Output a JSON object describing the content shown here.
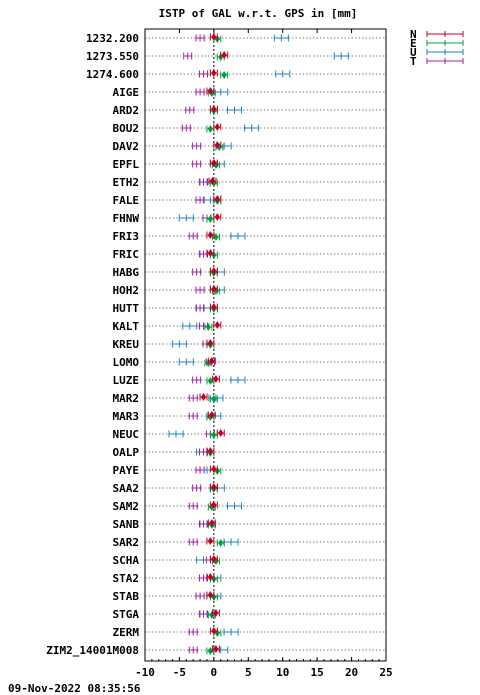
{
  "chart_data": {
    "type": "scatter",
    "title": "ISTP of GAL w.r.t. GPS in [mm]",
    "xlim": [
      -10,
      25
    ],
    "xticks": [
      -10,
      -5,
      0,
      5,
      10,
      15,
      20,
      25
    ],
    "grid": "horizontal dotted",
    "legend_position": "top-right",
    "colors": {
      "N": "#c00020",
      "E": "#00a040",
      "U": "#2080c0",
      "T": "#a020a0"
    },
    "series_names": [
      "N",
      "E",
      "U",
      "T"
    ],
    "stations": [
      {
        "name": "1232.200",
        "N": 0.0,
        "E": 0.5,
        "U": 9.8,
        "T": -2.0
      },
      {
        "name": "1273.550",
        "N": 1.5,
        "E": 1.0,
        "U": 18.5,
        "T": -3.8
      },
      {
        "name": "1274.600",
        "N": 0.0,
        "E": 1.5,
        "U": 10.0,
        "T": -1.5
      },
      {
        "name": "AIGE",
        "N": -0.5,
        "E": -0.3,
        "U": 1.0,
        "T": -2.0
      },
      {
        "name": "ARD2",
        "N": 0.0,
        "E": 0.0,
        "U": 3.0,
        "T": -3.5
      },
      {
        "name": "BOU2",
        "N": 0.5,
        "E": -0.5,
        "U": 5.5,
        "T": -4.0
      },
      {
        "name": "DAV2",
        "N": 0.5,
        "E": 0.8,
        "U": 1.5,
        "T": -2.5
      },
      {
        "name": "EPFL",
        "N": 0.0,
        "E": 0.3,
        "U": 0.5,
        "T": -2.5
      },
      {
        "name": "ETH2",
        "N": -0.2,
        "E": 0.0,
        "U": -1.0,
        "T": -1.5
      },
      {
        "name": "FALE",
        "N": 0.5,
        "E": 0.5,
        "U": -0.5,
        "T": -2.0
      },
      {
        "name": "FHNW",
        "N": 0.5,
        "E": -0.5,
        "U": -4.0,
        "T": -1.0
      },
      {
        "name": "FRI3",
        "N": -0.5,
        "E": 0.3,
        "U": 3.5,
        "T": -3.0
      },
      {
        "name": "FRIC",
        "N": -0.5,
        "E": 0.0,
        "U": -1.0,
        "T": -1.5
      },
      {
        "name": "HABG",
        "N": 0.0,
        "E": 0.0,
        "U": 0.5,
        "T": -2.5
      },
      {
        "name": "HOH2",
        "N": 0.0,
        "E": 0.3,
        "U": 0.5,
        "T": -2.0
      },
      {
        "name": "HUTT",
        "N": 0.0,
        "E": 0.0,
        "U": -1.5,
        "T": -2.0
      },
      {
        "name": "KALT",
        "N": 0.5,
        "E": -0.8,
        "U": -3.5,
        "T": -1.5
      },
      {
        "name": "KREU",
        "N": -0.5,
        "E": -0.5,
        "U": -5.0,
        "T": -1.0
      },
      {
        "name": "LOMO",
        "N": -0.3,
        "E": -0.8,
        "U": -4.0,
        "T": -0.5
      },
      {
        "name": "LUZE",
        "N": 0.3,
        "E": -0.5,
        "U": 3.5,
        "T": -2.5
      },
      {
        "name": "MAR2",
        "N": -1.5,
        "E": 0.0,
        "U": 0.3,
        "T": -3.0
      },
      {
        "name": "MAR3",
        "N": -0.3,
        "E": -0.5,
        "U": 0.0,
        "T": -3.0
      },
      {
        "name": "NEUC",
        "N": 1.0,
        "E": 0.0,
        "U": -5.5,
        "T": -0.5
      },
      {
        "name": "OALP",
        "N": -0.5,
        "E": -0.5,
        "U": -1.5,
        "T": -1.5
      },
      {
        "name": "PAYE",
        "N": 0.0,
        "E": 0.5,
        "U": -1.0,
        "T": -2.0
      },
      {
        "name": "SAA2",
        "N": 0.0,
        "E": 0.0,
        "U": 0.5,
        "T": -2.5
      },
      {
        "name": "SAM2",
        "N": 0.0,
        "E": -0.3,
        "U": 3.0,
        "T": -3.0
      },
      {
        "name": "SANB",
        "N": -0.3,
        "E": -0.3,
        "U": -1.0,
        "T": -1.5
      },
      {
        "name": "SAR2",
        "N": -0.5,
        "E": 1.0,
        "U": 2.5,
        "T": -3.0
      },
      {
        "name": "SCHA",
        "N": 0.0,
        "E": 0.3,
        "U": -1.5,
        "T": -0.5
      },
      {
        "name": "STA2",
        "N": -0.5,
        "E": 0.0,
        "U": 0.0,
        "T": -1.5
      },
      {
        "name": "STAB",
        "N": -0.5,
        "E": 0.0,
        "U": 0.0,
        "T": -2.0
      },
      {
        "name": "STGA",
        "N": 0.3,
        "E": -0.3,
        "U": -1.0,
        "T": -1.5
      },
      {
        "name": "ZERM",
        "N": 0.0,
        "E": 0.5,
        "U": 2.5,
        "T": -3.0
      },
      {
        "name": "ZIM2_14001M008",
        "N": 0.3,
        "E": -0.5,
        "U": 1.0,
        "T": -3.0
      }
    ]
  },
  "timestamp": "09-Nov-2022 08:35:56"
}
